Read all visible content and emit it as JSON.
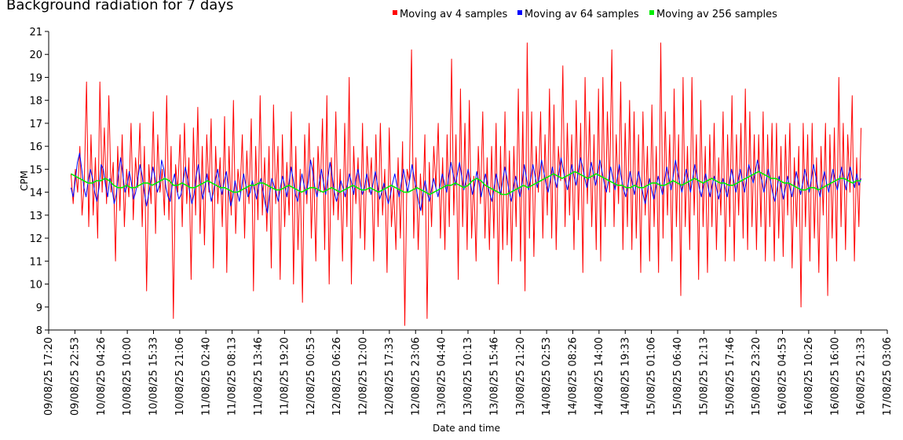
{
  "chart_data": {
    "type": "line",
    "title": "Background radiation for 7 days",
    "xlabel": "Date and time",
    "ylabel": "CPM",
    "ylim": [
      8,
      21
    ],
    "y_ticks": [
      8,
      9,
      10,
      11,
      12,
      13,
      14,
      15,
      16,
      17,
      18,
      19,
      20,
      21
    ],
    "x_ticks": [
      "09/08/25 17:20",
      "09/08/25 22:53",
      "10/08/25 04:26",
      "10/08/25 10:00",
      "10/08/25 15:33",
      "10/08/25 21:06",
      "11/08/25 02:40",
      "11/08/25 08:13",
      "11/08/25 13:46",
      "11/08/25 19:20",
      "12/08/25 00:53",
      "12/08/25 06:26",
      "12/08/25 12:00",
      "12/08/25 17:33",
      "12/08/25 23:06",
      "13/08/25 04:40",
      "13/08/25 10:13",
      "13/08/25 15:46",
      "13/08/25 21:20",
      "14/08/25 02:53",
      "14/08/25 08:26",
      "14/08/25 14:00",
      "14/08/25 19:33",
      "15/08/25 01:06",
      "15/08/25 06:40",
      "15/08/25 12:13",
      "15/08/25 17:46",
      "15/08/25 23:20",
      "16/08/25 04:53",
      "16/08/25 10:26",
      "16/08/25 16:00",
      "16/08/25 21:33",
      "17/08/25 03:06"
    ],
    "x_start": "09/08/25 22:00",
    "x_end": "16/08/25 22:00",
    "grid": false,
    "legend_position": "top-right",
    "series": [
      {
        "name": "Moving av 4 samples",
        "color": "#ff0000",
        "values": [
          14.8,
          13.5,
          15.0,
          14.0,
          16.0,
          13.0,
          14.5,
          18.8,
          12.5,
          16.5,
          13.0,
          15.5,
          12.0,
          18.8,
          14.0,
          16.8,
          13.5,
          18.2,
          14.0,
          15.3,
          11.0,
          16.0,
          13.2,
          16.5,
          12.5,
          15.0,
          13.8,
          17.0,
          12.8,
          15.5,
          14.2,
          17.0,
          12.5,
          16.0,
          9.7,
          15.2,
          13.5,
          17.5,
          12.2,
          16.5,
          14.0,
          15.0,
          13.0,
          18.2,
          12.8,
          16.0,
          8.5,
          15.2,
          14.0,
          16.5,
          12.5,
          17.0,
          13.5,
          15.5,
          10.2,
          16.8,
          13.0,
          17.7,
          12.2,
          16.0,
          11.7,
          16.5,
          14.0,
          17.2,
          10.7,
          16.0,
          13.5,
          15.5,
          12.5,
          17.3,
          10.5,
          16.0,
          13.0,
          18.0,
          12.2,
          15.0,
          14.0,
          16.5,
          12.0,
          15.8,
          13.5,
          17.2,
          9.7,
          16.0,
          12.8,
          18.2,
          13.0,
          15.5,
          12.3,
          16.0,
          10.7,
          17.8,
          13.5,
          16.0,
          10.2,
          16.5,
          12.5,
          15.3,
          13.0,
          17.5,
          10.0,
          16.0,
          11.5,
          15.0,
          9.2,
          16.5,
          13.5,
          17.0,
          12.0,
          15.5,
          11.0,
          16.0,
          14.0,
          17.2,
          11.5,
          18.2,
          10.0,
          15.5,
          13.0,
          17.5,
          12.8,
          15.0,
          11.0,
          17.0,
          12.5,
          19.0,
          10.0,
          16.0,
          13.5,
          15.5,
          12.0,
          17.0,
          11.5,
          16.0,
          14.0,
          15.5,
          11.0,
          16.5,
          12.5,
          17.0,
          13.0,
          15.0,
          10.5,
          16.8,
          12.5,
          14.2,
          11.5,
          15.5,
          12.0,
          16.2,
          8.2,
          15.0,
          14.5,
          20.2,
          12.0,
          15.5,
          11.5,
          14.8,
          13.0,
          16.5,
          8.5,
          15.3,
          12.5,
          16.0,
          14.2,
          17.0,
          12.0,
          15.5,
          11.5,
          16.5,
          12.5,
          19.8,
          13.0,
          16.5,
          10.2,
          18.5,
          12.5,
          17.0,
          11.5,
          18.0,
          12.0,
          14.7,
          11.0,
          16.0,
          13.5,
          17.5,
          12.0,
          15.5,
          11.5,
          16.0,
          12.0,
          17.0,
          10.0,
          16.0,
          11.5,
          17.5,
          11.7,
          15.8,
          11.0,
          16.0,
          12.5,
          18.5,
          11.0,
          17.5,
          9.7,
          20.5,
          12.0,
          17.5,
          11.2,
          16.0,
          14.0,
          17.5,
          12.0,
          16.5,
          13.0,
          18.5,
          12.0,
          17.8,
          11.5,
          16.0,
          14.5,
          19.5,
          12.5,
          17.0,
          13.0,
          16.5,
          11.5,
          18.0,
          12.8,
          17.0,
          10.5,
          19.0,
          13.5,
          17.5,
          12.5,
          16.5,
          11.5,
          18.5,
          11.0,
          19.0,
          12.5,
          17.5,
          14.0,
          20.2,
          12.5,
          16.5,
          13.5,
          18.8,
          11.5,
          17.0,
          12.5,
          18.0,
          11.5,
          17.5,
          12.0,
          16.5,
          10.5,
          17.5,
          13.0,
          16.0,
          11.0,
          17.8,
          12.5,
          16.0,
          10.5,
          20.5,
          12.0,
          17.5,
          13.0,
          16.5,
          11.0,
          18.5,
          12.5,
          16.5,
          9.5,
          19.0,
          12.5,
          16.0,
          11.5,
          19.0,
          13.0,
          16.5,
          10.2,
          18.0,
          12.5,
          16.0,
          10.5,
          16.5,
          12.5,
          17.0,
          11.5,
          15.5,
          13.0,
          17.5,
          11.0,
          16.5,
          12.5,
          18.2,
          11.0,
          16.5,
          13.0,
          17.0,
          12.0,
          18.5,
          11.5,
          17.5,
          12.5,
          16.5,
          11.5,
          16.5,
          12.5,
          17.5,
          11.0,
          16.5,
          12.5,
          17.0,
          11.0,
          17.0,
          12.0,
          16.0,
          11.2,
          16.5,
          13.0,
          17.0,
          10.7,
          15.5,
          12.5,
          16.0,
          9.0,
          17.0,
          12.5,
          16.5,
          11.0,
          17.0,
          12.0,
          15.5,
          10.5,
          16.0,
          13.0,
          17.0,
          9.5,
          16.5,
          12.0,
          16.8,
          11.0,
          19.0,
          12.5,
          17.0,
          11.5,
          16.5,
          14.0,
          18.2,
          11.0,
          15.5,
          12.5,
          16.8
        ]
      },
      {
        "name": "Moving av 64 samples",
        "color": "#0000ff",
        "values": [
          14.2,
          13.8,
          14.5,
          15.3,
          15.7,
          15.0,
          14.2,
          13.8,
          14.5,
          15.0,
          14.6,
          14.0,
          13.6,
          14.2,
          15.2,
          15.0,
          14.3,
          13.8,
          14.6,
          14.2,
          13.5,
          13.9,
          14.8,
          15.5,
          14.8,
          14.0,
          14.3,
          14.9,
          14.4,
          13.7,
          14.0,
          14.6,
          15.2,
          14.7,
          14.0,
          13.4,
          13.9,
          14.5,
          15.1,
          14.6,
          14.0,
          14.3,
          15.4,
          15.0,
          14.2,
          13.8,
          13.6,
          14.4,
          14.8,
          14.1,
          13.7,
          13.9,
          14.5,
          15.1,
          14.6,
          14.0,
          13.5,
          13.9,
          14.7,
          15.2,
          14.4,
          13.7,
          14.2,
          14.8,
          14.2,
          13.6,
          14.0,
          14.6,
          15.0,
          14.3,
          13.9,
          14.5,
          14.9,
          14.1,
          13.4,
          13.8,
          14.5,
          14.0,
          13.6,
          14.2,
          14.8,
          14.3,
          13.8,
          14.0,
          14.5,
          14.1,
          13.7,
          14.3,
          14.6,
          14.0,
          13.5,
          13.1,
          13.9,
          14.6,
          14.3,
          14.0,
          13.6,
          14.2,
          14.7,
          14.3,
          13.8,
          14.4,
          15.1,
          14.5,
          13.9,
          13.6,
          14.2,
          14.8,
          14.3,
          13.9,
          14.5,
          15.4,
          14.9,
          14.2,
          13.8,
          14.4,
          15.0,
          14.4,
          13.9,
          14.6,
          15.3,
          14.7,
          14.0,
          13.6,
          14.0,
          14.5,
          14.2,
          13.8,
          14.3,
          14.8,
          14.4,
          13.9,
          14.6,
          15.0,
          14.4,
          13.9,
          14.2,
          14.8,
          14.3,
          13.9,
          14.4,
          14.9,
          14.3,
          13.7,
          14.0,
          14.4,
          13.9,
          13.5,
          13.9,
          14.4,
          14.8,
          14.3,
          13.8,
          14.4,
          15.0,
          14.5,
          14.0,
          14.6,
          15.2,
          14.6,
          14.1,
          13.6,
          13.2,
          13.9,
          14.5,
          14.0,
          13.6,
          14.1,
          14.6,
          14.2,
          13.8,
          14.3,
          14.8,
          14.4,
          14.0,
          14.7,
          15.3,
          14.8,
          14.3,
          14.8,
          15.3,
          14.7,
          14.1,
          14.5,
          15.0,
          14.4,
          13.9,
          14.3,
          14.9,
          14.4,
          13.8,
          14.3,
          14.8,
          14.3,
          13.9,
          13.6,
          14.2,
          14.8,
          14.3,
          13.9,
          14.5,
          15.1,
          14.6,
          14.0,
          13.6,
          14.2,
          14.7,
          14.2,
          13.8,
          14.4,
          15.2,
          14.6,
          14.1,
          14.6,
          15.2,
          14.7,
          14.2,
          14.7,
          15.4,
          14.9,
          14.4,
          14.0,
          14.5,
          15.1,
          14.6,
          14.2,
          14.8,
          15.5,
          15.0,
          14.5,
          14.1,
          14.6,
          15.2,
          14.7,
          14.3,
          14.9,
          15.5,
          15.1,
          14.6,
          14.2,
          14.7,
          15.3,
          14.8,
          14.3,
          14.8,
          15.4,
          14.9,
          14.4,
          14.0,
          14.5,
          15.1,
          14.6,
          14.1,
          14.6,
          15.2,
          14.6,
          14.1,
          13.8,
          14.3,
          14.9,
          14.4,
          13.9,
          14.4,
          14.9,
          14.4,
          13.9,
          13.5,
          14.0,
          14.6,
          14.1,
          13.7,
          14.2,
          14.7,
          14.3,
          13.9,
          14.5,
          15.1,
          14.6,
          14.1,
          14.7,
          15.4,
          14.9,
          14.4,
          14.0,
          14.5,
          15.0,
          14.5,
          14.0,
          14.6,
          15.2,
          14.7,
          14.2,
          13.8,
          14.3,
          14.8,
          14.3,
          13.8,
          14.3,
          14.7,
          14.2,
          13.7,
          14.1,
          14.6,
          14.2,
          13.8,
          14.4,
          15.0,
          14.5,
          14.0,
          14.5,
          15.0,
          14.5,
          14.0,
          14.6,
          15.2,
          14.8,
          14.4,
          14.9,
          15.4,
          14.9,
          14.5,
          14.0,
          14.5,
          15.0,
          14.5,
          14.0,
          13.6,
          14.1,
          14.7,
          14.2,
          13.7,
          14.2,
          14.7,
          14.2,
          13.8,
          14.3,
          14.9,
          14.4,
          13.9,
          14.4,
          15.0,
          14.5,
          14.0,
          14.6,
          15.2,
          14.7,
          14.2,
          13.8,
          14.4,
          14.9,
          14.4,
          14.0,
          14.5,
          15.0,
          14.5,
          14.1,
          14.6,
          15.1,
          14.6,
          14.1,
          14.7,
          15.1,
          14.6,
          14.2,
          14.8,
          14.3,
          14.6
        ]
      },
      {
        "name": "Moving av 256 samples",
        "color": "#00ee00",
        "values": [
          14.8,
          14.7,
          14.6,
          14.5,
          14.4,
          14.4,
          14.5,
          14.5,
          14.6,
          14.5,
          14.3,
          14.2,
          14.2,
          14.3,
          14.2,
          14.2,
          14.3,
          14.4,
          14.4,
          14.3,
          14.4,
          14.5,
          14.6,
          14.5,
          14.3,
          14.3,
          14.4,
          14.3,
          14.2,
          14.2,
          14.3,
          14.4,
          14.5,
          14.4,
          14.3,
          14.2,
          14.2,
          14.1,
          14.0,
          14.0,
          14.1,
          14.2,
          14.3,
          14.3,
          14.4,
          14.4,
          14.3,
          14.2,
          14.1,
          14.1,
          14.2,
          14.3,
          14.2,
          14.1,
          14.0,
          14.1,
          14.2,
          14.2,
          14.1,
          14.0,
          14.1,
          14.2,
          14.1,
          14.0,
          14.1,
          14.2,
          14.3,
          14.2,
          14.1,
          14.1,
          14.2,
          14.1,
          14.0,
          14.1,
          14.2,
          14.3,
          14.2,
          14.1,
          14.0,
          14.0,
          14.1,
          14.2,
          14.1,
          14.0,
          13.9,
          14.0,
          14.1,
          14.2,
          14.3,
          14.3,
          14.4,
          14.3,
          14.2,
          14.3,
          14.5,
          14.6,
          14.5,
          14.3,
          14.2,
          14.1,
          14.0,
          13.9,
          13.9,
          14.0,
          14.1,
          14.2,
          14.3,
          14.2,
          14.3,
          14.4,
          14.5,
          14.6,
          14.7,
          14.8,
          14.7,
          14.6,
          14.7,
          14.8,
          14.9,
          14.8,
          14.7,
          14.6,
          14.7,
          14.8,
          14.7,
          14.6,
          14.5,
          14.4,
          14.3,
          14.3,
          14.2,
          14.2,
          14.3,
          14.2,
          14.2,
          14.3,
          14.4,
          14.4,
          14.3,
          14.3,
          14.4,
          14.5,
          14.4,
          14.3,
          14.4,
          14.5,
          14.6,
          14.5,
          14.4,
          14.5,
          14.6,
          14.5,
          14.4,
          14.4,
          14.3,
          14.3,
          14.4,
          14.5,
          14.6,
          14.7,
          14.8,
          14.9,
          14.8,
          14.7,
          14.6,
          14.6,
          14.5,
          14.4,
          14.4,
          14.3,
          14.2,
          14.1,
          14.1,
          14.2,
          14.2,
          14.1,
          14.2,
          14.3,
          14.4,
          14.5,
          14.6,
          14.6,
          14.5,
          14.4,
          14.5,
          14.5
        ]
      }
    ]
  }
}
